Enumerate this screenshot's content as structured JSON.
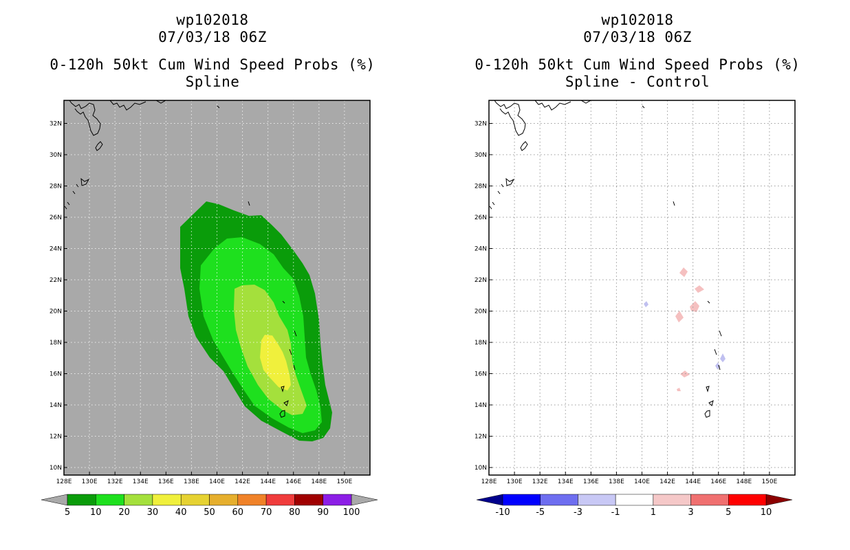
{
  "left_panel": {
    "title_line1": "wp102018",
    "title_line2": "07/03/18 06Z",
    "title_line3": "0-120h 50kt Cum Wind Speed Probs (%)",
    "title_line4": "Spline",
    "background_color": "#a9a9a9",
    "contour_levels": [
      {
        "threshold": 5,
        "color": "#0a9c0a"
      },
      {
        "threshold": 10,
        "color": "#1ee01e"
      },
      {
        "threshold": 20,
        "color": "#a4e03c"
      },
      {
        "threshold": 30,
        "color": "#f0f03c"
      }
    ],
    "colorbar": {
      "labels": [
        "5",
        "10",
        "20",
        "30",
        "40",
        "50",
        "60",
        "70",
        "80",
        "90",
        "100"
      ],
      "colors": [
        "#0a9c0a",
        "#1ee01e",
        "#a4e03c",
        "#f0f03c",
        "#e6d232",
        "#e6af2d",
        "#f08228",
        "#f03c3c",
        "#a00000",
        "#8c1ee6"
      ],
      "under_color": "#a9a9a9",
      "over_color": "#a9a9a9"
    }
  },
  "right_panel": {
    "title_line1": "wp102018",
    "title_line2": "07/03/18 06Z",
    "title_line3": "0-120h 50kt Cum Wind Speed Probs (%)",
    "title_line4": "Spline - Control",
    "background_color": "#ffffff",
    "colorbar": {
      "labels": [
        "-10",
        "-5",
        "-3",
        "-1",
        "1",
        "3",
        "5",
        "10"
      ],
      "colors": [
        "#0000ff",
        "#6e6ef0",
        "#c8c8f5",
        "#ffffff",
        "#f5c8c8",
        "#f07070",
        "#ff0000"
      ],
      "under_color": "#00008c",
      "over_color": "#8c0000"
    }
  },
  "map": {
    "lon_labels": [
      "128E",
      "130E",
      "132E",
      "134E",
      "136E",
      "138E",
      "140E",
      "142E",
      "144E",
      "146E",
      "148E",
      "150E"
    ],
    "lat_labels": [
      "10N",
      "12N",
      "14N",
      "16N",
      "18N",
      "20N",
      "22N",
      "24N",
      "26N",
      "28N",
      "30N",
      "32N"
    ]
  }
}
